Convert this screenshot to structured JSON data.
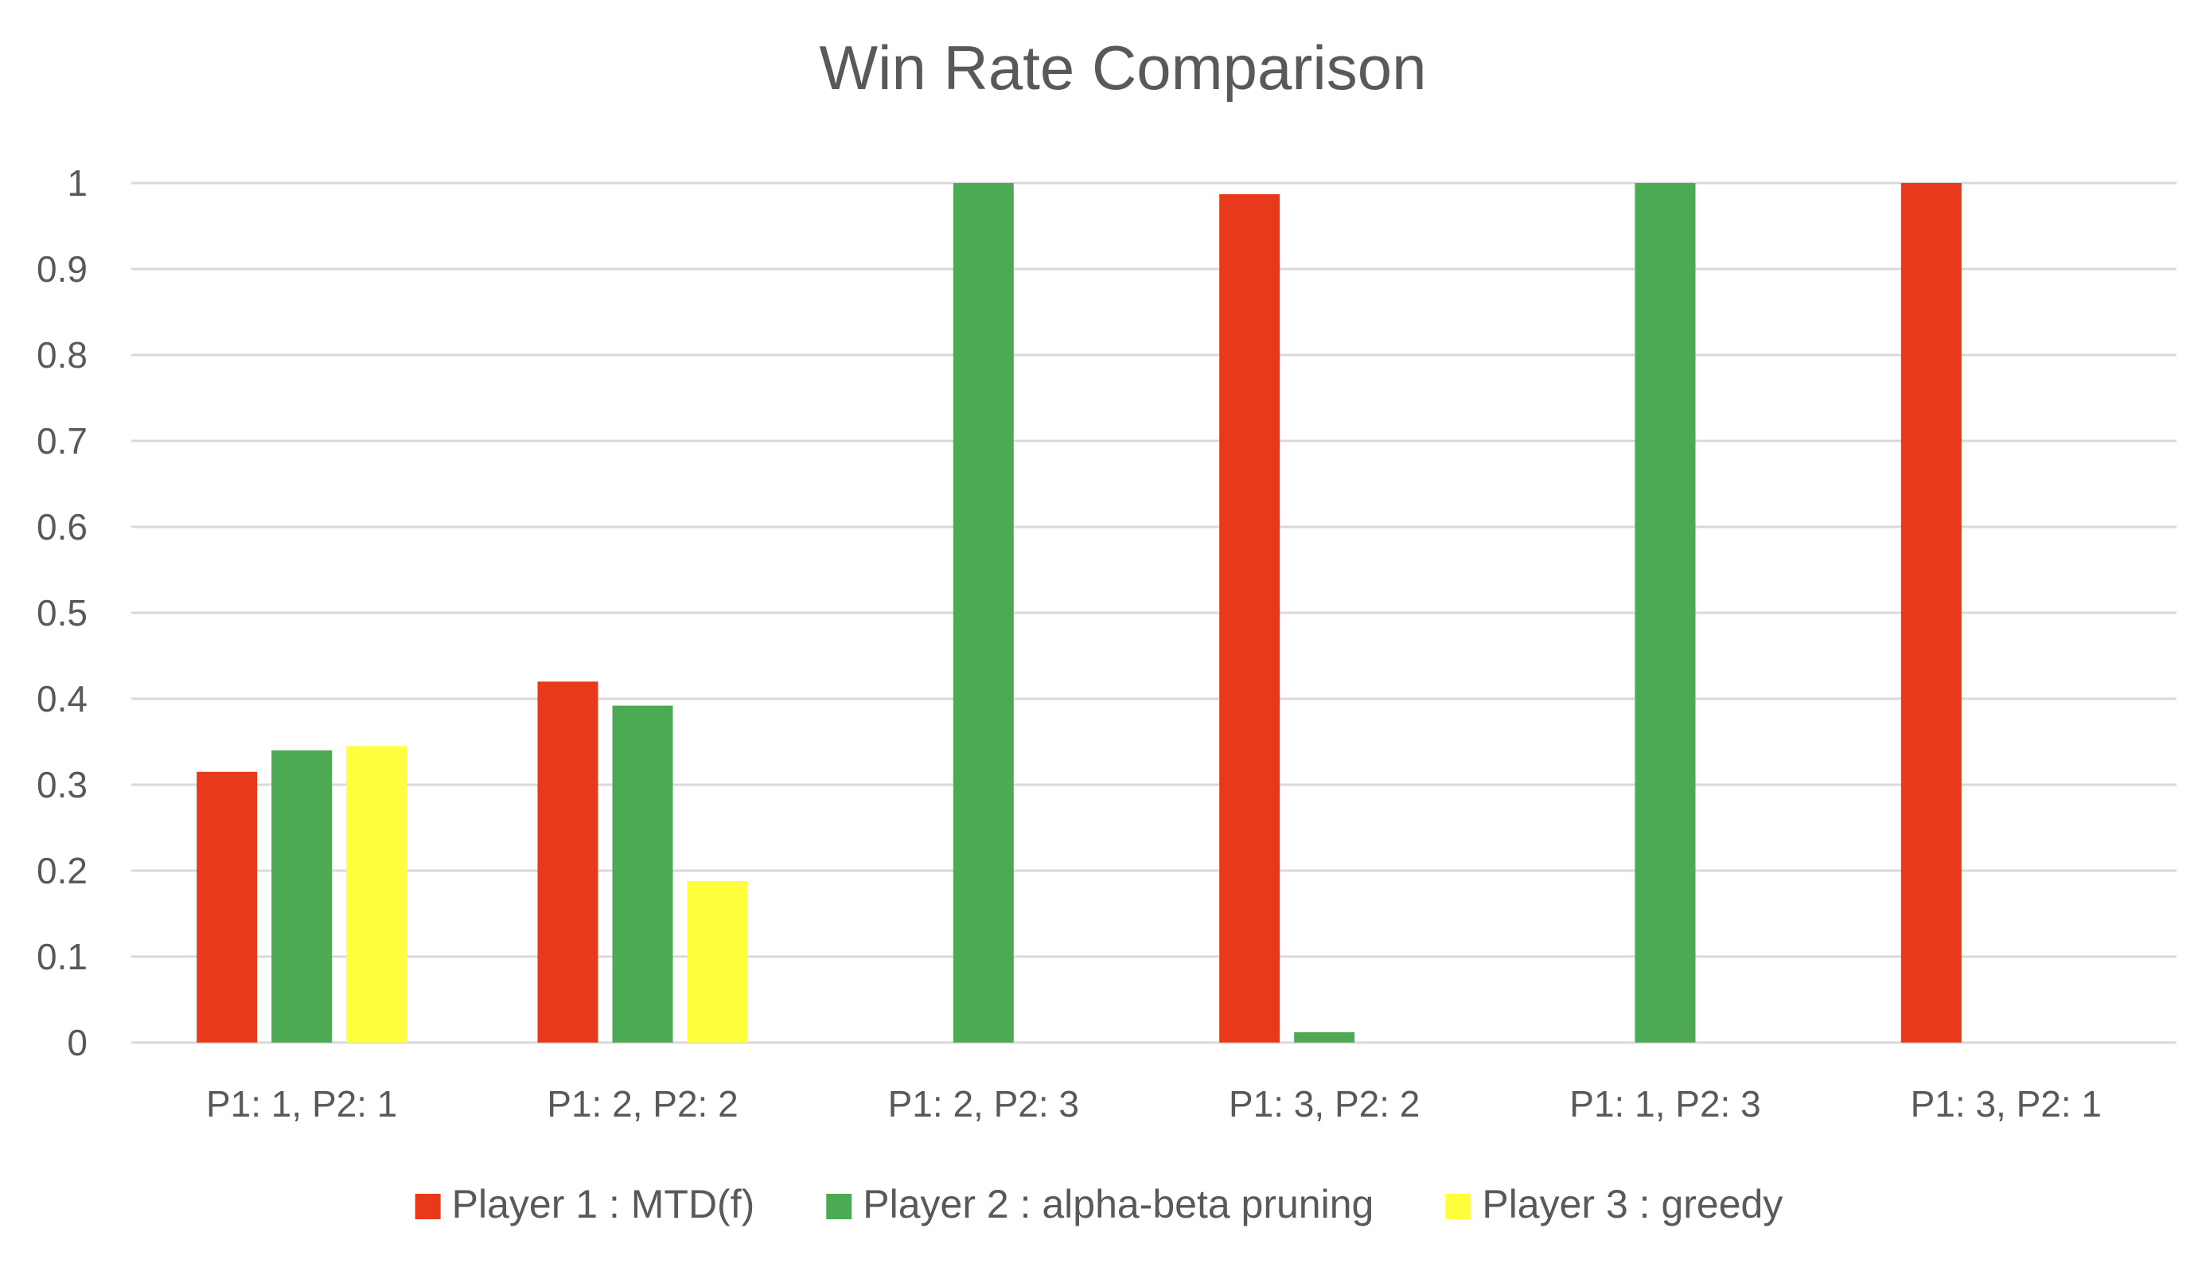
{
  "chart_data": {
    "type": "bar",
    "title": "Win Rate Comparison",
    "xlabel": "",
    "ylabel": "",
    "categories": [
      "P1: 1, P2: 1",
      "P1: 2, P2: 2",
      "P1: 2, P2: 3",
      "P1: 3, P2: 2",
      "P1: 1, P2: 3",
      "P1: 3, P2: 1"
    ],
    "series": [
      {
        "name": "Player 1 : MTD(f)",
        "color": "#E8391D",
        "values": [
          0.315,
          0.42,
          0,
          0.987,
          0,
          1.0
        ]
      },
      {
        "name": "Player 2 : alpha-beta pruning",
        "color": "#4CAA55",
        "values": [
          0.34,
          0.392,
          1.0,
          0.012,
          1.0,
          0
        ]
      },
      {
        "name": "Player 3 : greedy",
        "color": "#FFFF3D",
        "values": [
          0.345,
          0.188,
          0,
          0,
          0,
          0
        ]
      }
    ],
    "ylim": [
      0,
      1
    ],
    "yticks": [
      "0",
      "0.1",
      "0.2",
      "0.3",
      "0.4",
      "0.5",
      "0.6",
      "0.7",
      "0.8",
      "0.9",
      "1"
    ],
    "grid": true,
    "legend_position": "bottom"
  }
}
